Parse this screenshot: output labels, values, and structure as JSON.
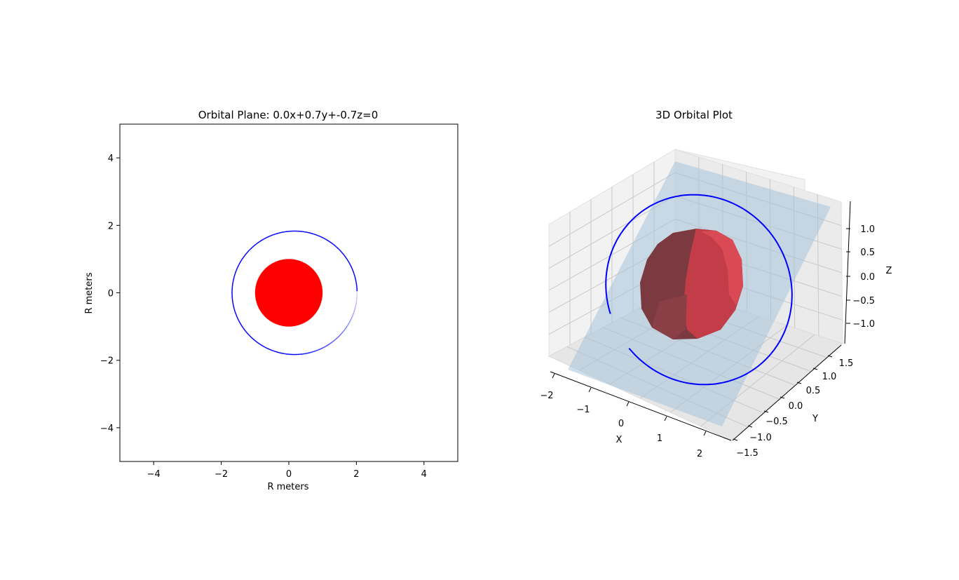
{
  "chart_data": [
    {
      "type": "line",
      "title": "Orbital Plane: 0.0x+0.7y+-0.7z=0",
      "xlabel": "R meters",
      "ylabel": "R meters",
      "xlim": [
        -5,
        5
      ],
      "ylim": [
        -5,
        5
      ],
      "xticks": [
        "−4",
        "−2",
        "0",
        "2",
        "4"
      ],
      "xtick_values": [
        -4,
        -2,
        0,
        2,
        4
      ],
      "yticks": [
        "−4",
        "−2",
        "0",
        "2",
        "4"
      ],
      "ytick_values": [
        -4,
        -2,
        0,
        2,
        4
      ],
      "grid": false,
      "planet": {
        "center": [
          0,
          0
        ],
        "radius": 1.0,
        "color": "#ff0000"
      },
      "orbit": {
        "semi_major": 1.85,
        "center_x": 0.17,
        "semi_minor": 1.83,
        "color": "#0000ff",
        "fade_start_deg": -90,
        "fade_end_deg": 0
      }
    },
    {
      "type": "line",
      "title": "3D Orbital Plot",
      "xlabel": "X",
      "ylabel": "Y",
      "zlabel": "Z",
      "xticks": [
        "−2",
        "−1",
        "0",
        "1",
        "2"
      ],
      "yticks": [
        "−1.5",
        "−1.0",
        "−0.5",
        "0.0",
        "0.5",
        "1.0",
        "1.5"
      ],
      "zticks": [
        "−1.0",
        "−0.5",
        "0.0",
        "0.5",
        "1.0"
      ],
      "grid": true,
      "plane_color": "#a6c4da",
      "sphere_color": "#c0303a",
      "orbit_color": "#0000ff"
    }
  ]
}
